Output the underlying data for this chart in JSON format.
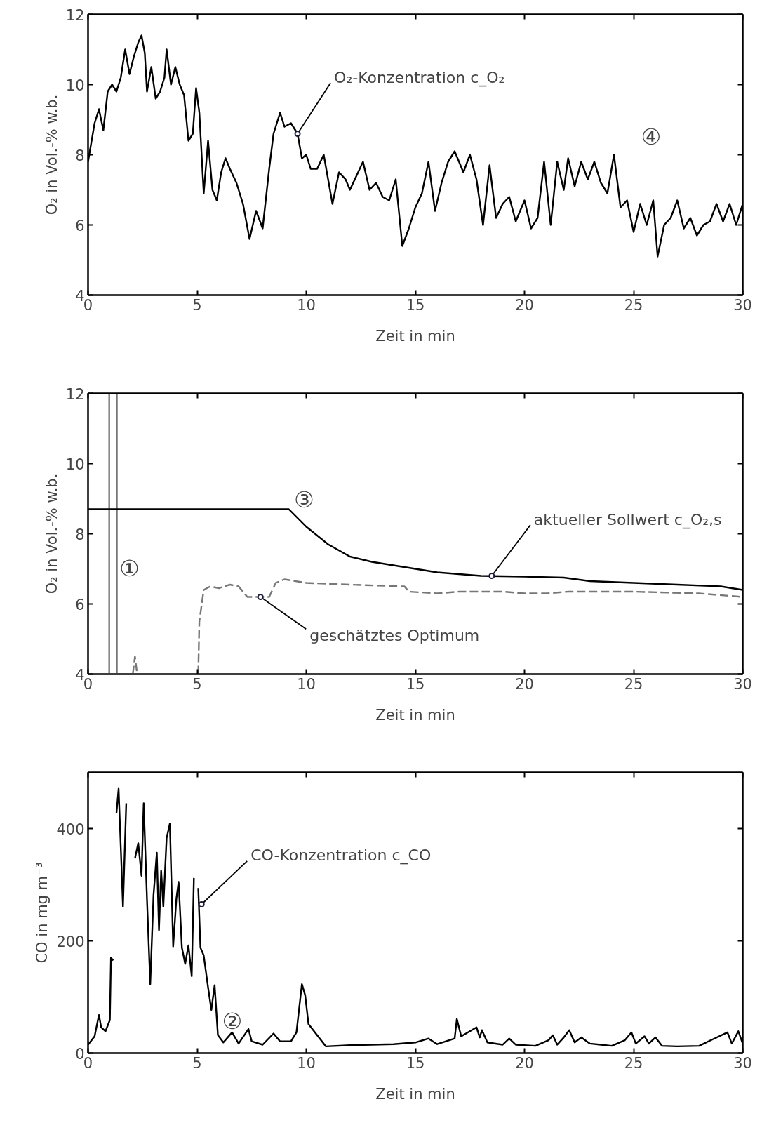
{
  "chart_data": [
    {
      "type": "line",
      "xlabel": "Zeit in min",
      "ylabel": "O₂ in Vol.-% w.b.",
      "xlim": [
        0,
        30
      ],
      "ylim": [
        4,
        12
      ],
      "xticks": [
        0,
        5,
        10,
        15,
        20,
        25,
        30
      ],
      "yticks": [
        4,
        6,
        8,
        10,
        12
      ],
      "grid": false,
      "marker": "none",
      "series": [
        {
          "color": "#000000",
          "line_style": "solid",
          "x": [
            0,
            0.3,
            0.5,
            0.7,
            0.9,
            1.1,
            1.3,
            1.5,
            1.7,
            1.9,
            2.1,
            2.3,
            2.45,
            2.6,
            2.7,
            2.9,
            3.1,
            3.3,
            3.5,
            3.6,
            3.8,
            4.0,
            4.2,
            4.4,
            4.6,
            4.8,
            4.95,
            5.1,
            5.3,
            5.5,
            5.7,
            5.9,
            6.1,
            6.3,
            6.5,
            6.8,
            7.1,
            7.4,
            7.7,
            8.0,
            8.3,
            8.5,
            8.8,
            9.0,
            9.3,
            9.6,
            9.8,
            10.0,
            10.2,
            10.5,
            10.8,
            11.0,
            11.2,
            11.5,
            11.8,
            12.0,
            12.3,
            12.6,
            12.9,
            13.2,
            13.5,
            13.8,
            14.1,
            14.4,
            14.7,
            15.0,
            15.3,
            15.6,
            15.9,
            16.2,
            16.5,
            16.8,
            17.2,
            17.5,
            17.8,
            18.1,
            18.4,
            18.7,
            19.0,
            19.3,
            19.6,
            20.0,
            20.3,
            20.6,
            20.9,
            21.2,
            21.5,
            21.8,
            22.0,
            22.3,
            22.6,
            22.9,
            23.2,
            23.5,
            23.8,
            24.1,
            24.4,
            24.7,
            25.0,
            25.3,
            25.6,
            25.9,
            26.1,
            26.4,
            26.7,
            27.0,
            27.3,
            27.6,
            27.9,
            28.2,
            28.5,
            28.8,
            29.1,
            29.4,
            29.7,
            30.0
          ],
          "values": [
            7.8,
            8.9,
            9.3,
            8.7,
            9.8,
            10.0,
            9.8,
            10.2,
            11.0,
            10.3,
            10.8,
            11.2,
            11.4,
            10.9,
            9.8,
            10.5,
            9.6,
            9.8,
            10.2,
            11.0,
            10.0,
            10.5,
            10.0,
            9.7,
            8.4,
            8.6,
            9.9,
            9.2,
            6.9,
            8.4,
            7.0,
            6.7,
            7.5,
            7.9,
            7.6,
            7.2,
            6.6,
            5.6,
            6.4,
            5.9,
            7.6,
            8.6,
            9.2,
            8.8,
            8.9,
            8.6,
            7.9,
            8.0,
            7.6,
            7.6,
            8.0,
            7.3,
            6.6,
            7.5,
            7.3,
            7.0,
            7.4,
            7.8,
            7.0,
            7.2,
            6.8,
            6.7,
            7.3,
            5.4,
            5.9,
            6.5,
            6.9,
            7.8,
            6.4,
            7.2,
            7.8,
            8.1,
            7.5,
            8.0,
            7.3,
            6.0,
            7.7,
            6.2,
            6.6,
            6.8,
            6.1,
            6.7,
            5.9,
            6.2,
            7.8,
            6.0,
            7.8,
            7.0,
            7.9,
            7.1,
            7.8,
            7.3,
            7.8,
            7.2,
            6.9,
            8.0,
            6.5,
            6.7,
            5.8,
            6.6,
            6.0,
            6.7,
            5.1,
            6.0,
            6.2,
            6.7,
            5.9,
            6.2,
            5.7,
            6.0,
            6.1,
            6.6,
            6.1,
            6.6,
            6.0,
            6.6
          ]
        }
      ],
      "annotations": [
        {
          "text": "O₂-Konzentration c_O₂",
          "x": 9.6,
          "y": 8.6
        },
        "④"
      ]
    },
    {
      "type": "line",
      "xlabel": "Zeit in min",
      "ylabel": "O₂ in Vol.-% w.b.",
      "xlim": [
        0,
        30
      ],
      "ylim": [
        4,
        12
      ],
      "xticks": [
        0,
        5,
        10,
        15,
        20,
        25,
        30
      ],
      "yticks": [
        4,
        6,
        8,
        10,
        12
      ],
      "grid": false,
      "marker": "none",
      "series": [
        {
          "color": "#777777",
          "line_style": "solid",
          "x": [
            0.97,
            0.97,
            null,
            1.32,
            1.32
          ],
          "values": [
            4,
            12,
            null,
            4,
            12
          ]
        },
        {
          "color": "#000000",
          "line_style": "solid",
          "x": [
            0,
            9.2,
            10,
            11,
            12,
            13,
            14,
            15,
            16,
            17,
            18,
            20,
            21.8,
            23,
            25,
            27,
            29,
            30
          ],
          "values": [
            8.7,
            8.7,
            8.2,
            7.7,
            7.35,
            7.2,
            7.1,
            7.0,
            6.9,
            6.85,
            6.8,
            6.78,
            6.75,
            6.65,
            6.6,
            6.55,
            6.5,
            6.4
          ]
        },
        {
          "color": "#777777",
          "line_style": "dashed",
          "x": [
            2.05,
            2.15,
            2.25,
            null,
            5.05,
            5.1,
            5.3,
            5.6,
            6.0,
            6.5,
            6.9,
            7.3,
            7.9,
            8.3,
            8.6,
            9.0,
            10,
            12,
            14.5,
            14.7,
            16,
            17,
            19,
            20,
            21,
            22,
            25,
            28,
            30
          ],
          "values": [
            4,
            4.5,
            4,
            null,
            4,
            5.5,
            6.4,
            6.5,
            6.45,
            6.55,
            6.5,
            6.2,
            6.2,
            6.2,
            6.6,
            6.7,
            6.6,
            6.55,
            6.5,
            6.35,
            6.3,
            6.35,
            6.35,
            6.3,
            6.3,
            6.35,
            6.35,
            6.3,
            6.2
          ]
        }
      ],
      "annotations": [
        {
          "text": "aktueller Sollwert c_O₂,s",
          "x": 18.5,
          "y": 6.8
        },
        {
          "text": "geschätztes Optimum",
          "x": 7.9,
          "y": 6.2
        },
        "①",
        "③"
      ]
    },
    {
      "type": "line",
      "xlabel": "Zeit in min",
      "ylabel": "CO in mg m⁻³",
      "xlim": [
        0,
        30
      ],
      "ylim": [
        0,
        500
      ],
      "xticks": [
        0,
        5,
        10,
        15,
        20,
        25,
        30
      ],
      "yticks": [
        0,
        200,
        400
      ],
      "grid": false,
      "marker": "none",
      "series": [
        {
          "color": "#000000",
          "line_style": "solid",
          "x": [
            0,
            0.3,
            0.5,
            0.6,
            0.8,
            1.0,
            1.05,
            1.15,
            1.25,
            1.3,
            1.4,
            1.6,
            1.75,
            1.85,
            2.05,
            2.15,
            2.3,
            2.45,
            2.55,
            2.7,
            2.85,
            3.0,
            3.15,
            3.25,
            3.35,
            3.45,
            3.6,
            3.75,
            3.9,
            4.05,
            4.15,
            4.3,
            4.45,
            4.6,
            4.75,
            4.85,
            4.9,
            5.0,
            5.05,
            5.15,
            5.3,
            5.5,
            5.65,
            5.8,
            5.95,
            6.2,
            6.6,
            6.9,
            7.35,
            7.5,
            8.0,
            8.5,
            8.8,
            9.3,
            9.55,
            9.8,
            9.95,
            10.1,
            10.4,
            10.9,
            12,
            13,
            14,
            15,
            15.6,
            16,
            16.8,
            16.9,
            17.1,
            17.8,
            17.95,
            18.05,
            18.3,
            19,
            19.3,
            19.6,
            20.5,
            21.1,
            21.3,
            21.5,
            21.8,
            22.05,
            22.3,
            22.6,
            23.0,
            23.5,
            24.0,
            24.6,
            24.9,
            25.1,
            25.5,
            25.7,
            26.0,
            26.3,
            27,
            28,
            29.3,
            29.5,
            29.8,
            30
          ],
          "values": [
            15,
            30,
            68,
            46,
            39,
            59,
            170,
            165,
            null,
            427,
            471,
            261,
            445,
            null,
            null,
            347,
            374,
            316,
            445,
            274,
            123,
            281,
            357,
            219,
            325,
            261,
            383,
            409,
            190,
            276,
            305,
            188,
            159,
            192,
            137,
            312,
            null,
            null,
            294,
            188,
            174,
            117,
            77,
            121,
            32,
            19,
            37,
            17,
            43,
            21,
            15,
            35,
            21,
            21,
            37,
            123,
            103,
            52,
            37,
            12,
            14,
            15,
            16,
            19,
            26,
            16,
            26,
            61,
            30,
            46,
            28,
            41,
            19,
            15,
            26,
            15,
            13,
            23,
            32,
            15,
            28,
            41,
            19,
            28,
            17,
            15,
            13,
            23,
            37,
            17,
            30,
            17,
            28,
            13,
            12,
            13,
            37,
            17,
            39,
            17
          ]
        }
      ],
      "annotations": [
        {
          "text": "CO-Konzentration c_CO",
          "x": 5.2,
          "y": 265
        },
        "②"
      ]
    }
  ]
}
